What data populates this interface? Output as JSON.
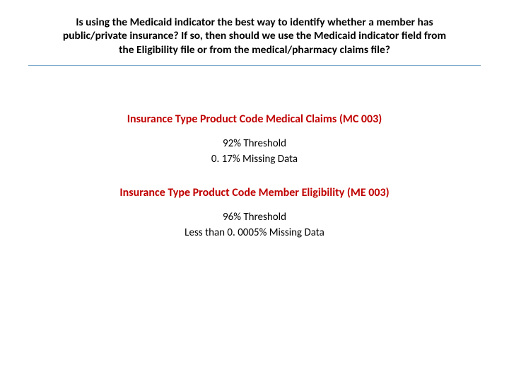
{
  "header": {
    "line1": "Is using the Medicaid indicator the best way to identify whether a member has",
    "line2": "public/private insurance? If so, then should we use the Medicaid indicator field from",
    "line3": "the Eligibility file or from the medical/pharmacy claims file?"
  },
  "sections": [
    {
      "title": "Insurance Type Product Code Medical Claims (MC 003)",
      "title_color": "#c00000",
      "stats": [
        "92% Threshold",
        "0. 17% Missing Data"
      ]
    },
    {
      "title": "Insurance Type Product Code Member Eligibility (ME 003)",
      "title_color": "#c00000",
      "stats": [
        "96% Threshold",
        "Less than 0. 0005% Missing Data"
      ]
    }
  ],
  "divider_color": "#7da9c9",
  "background_color": "#ffffff"
}
